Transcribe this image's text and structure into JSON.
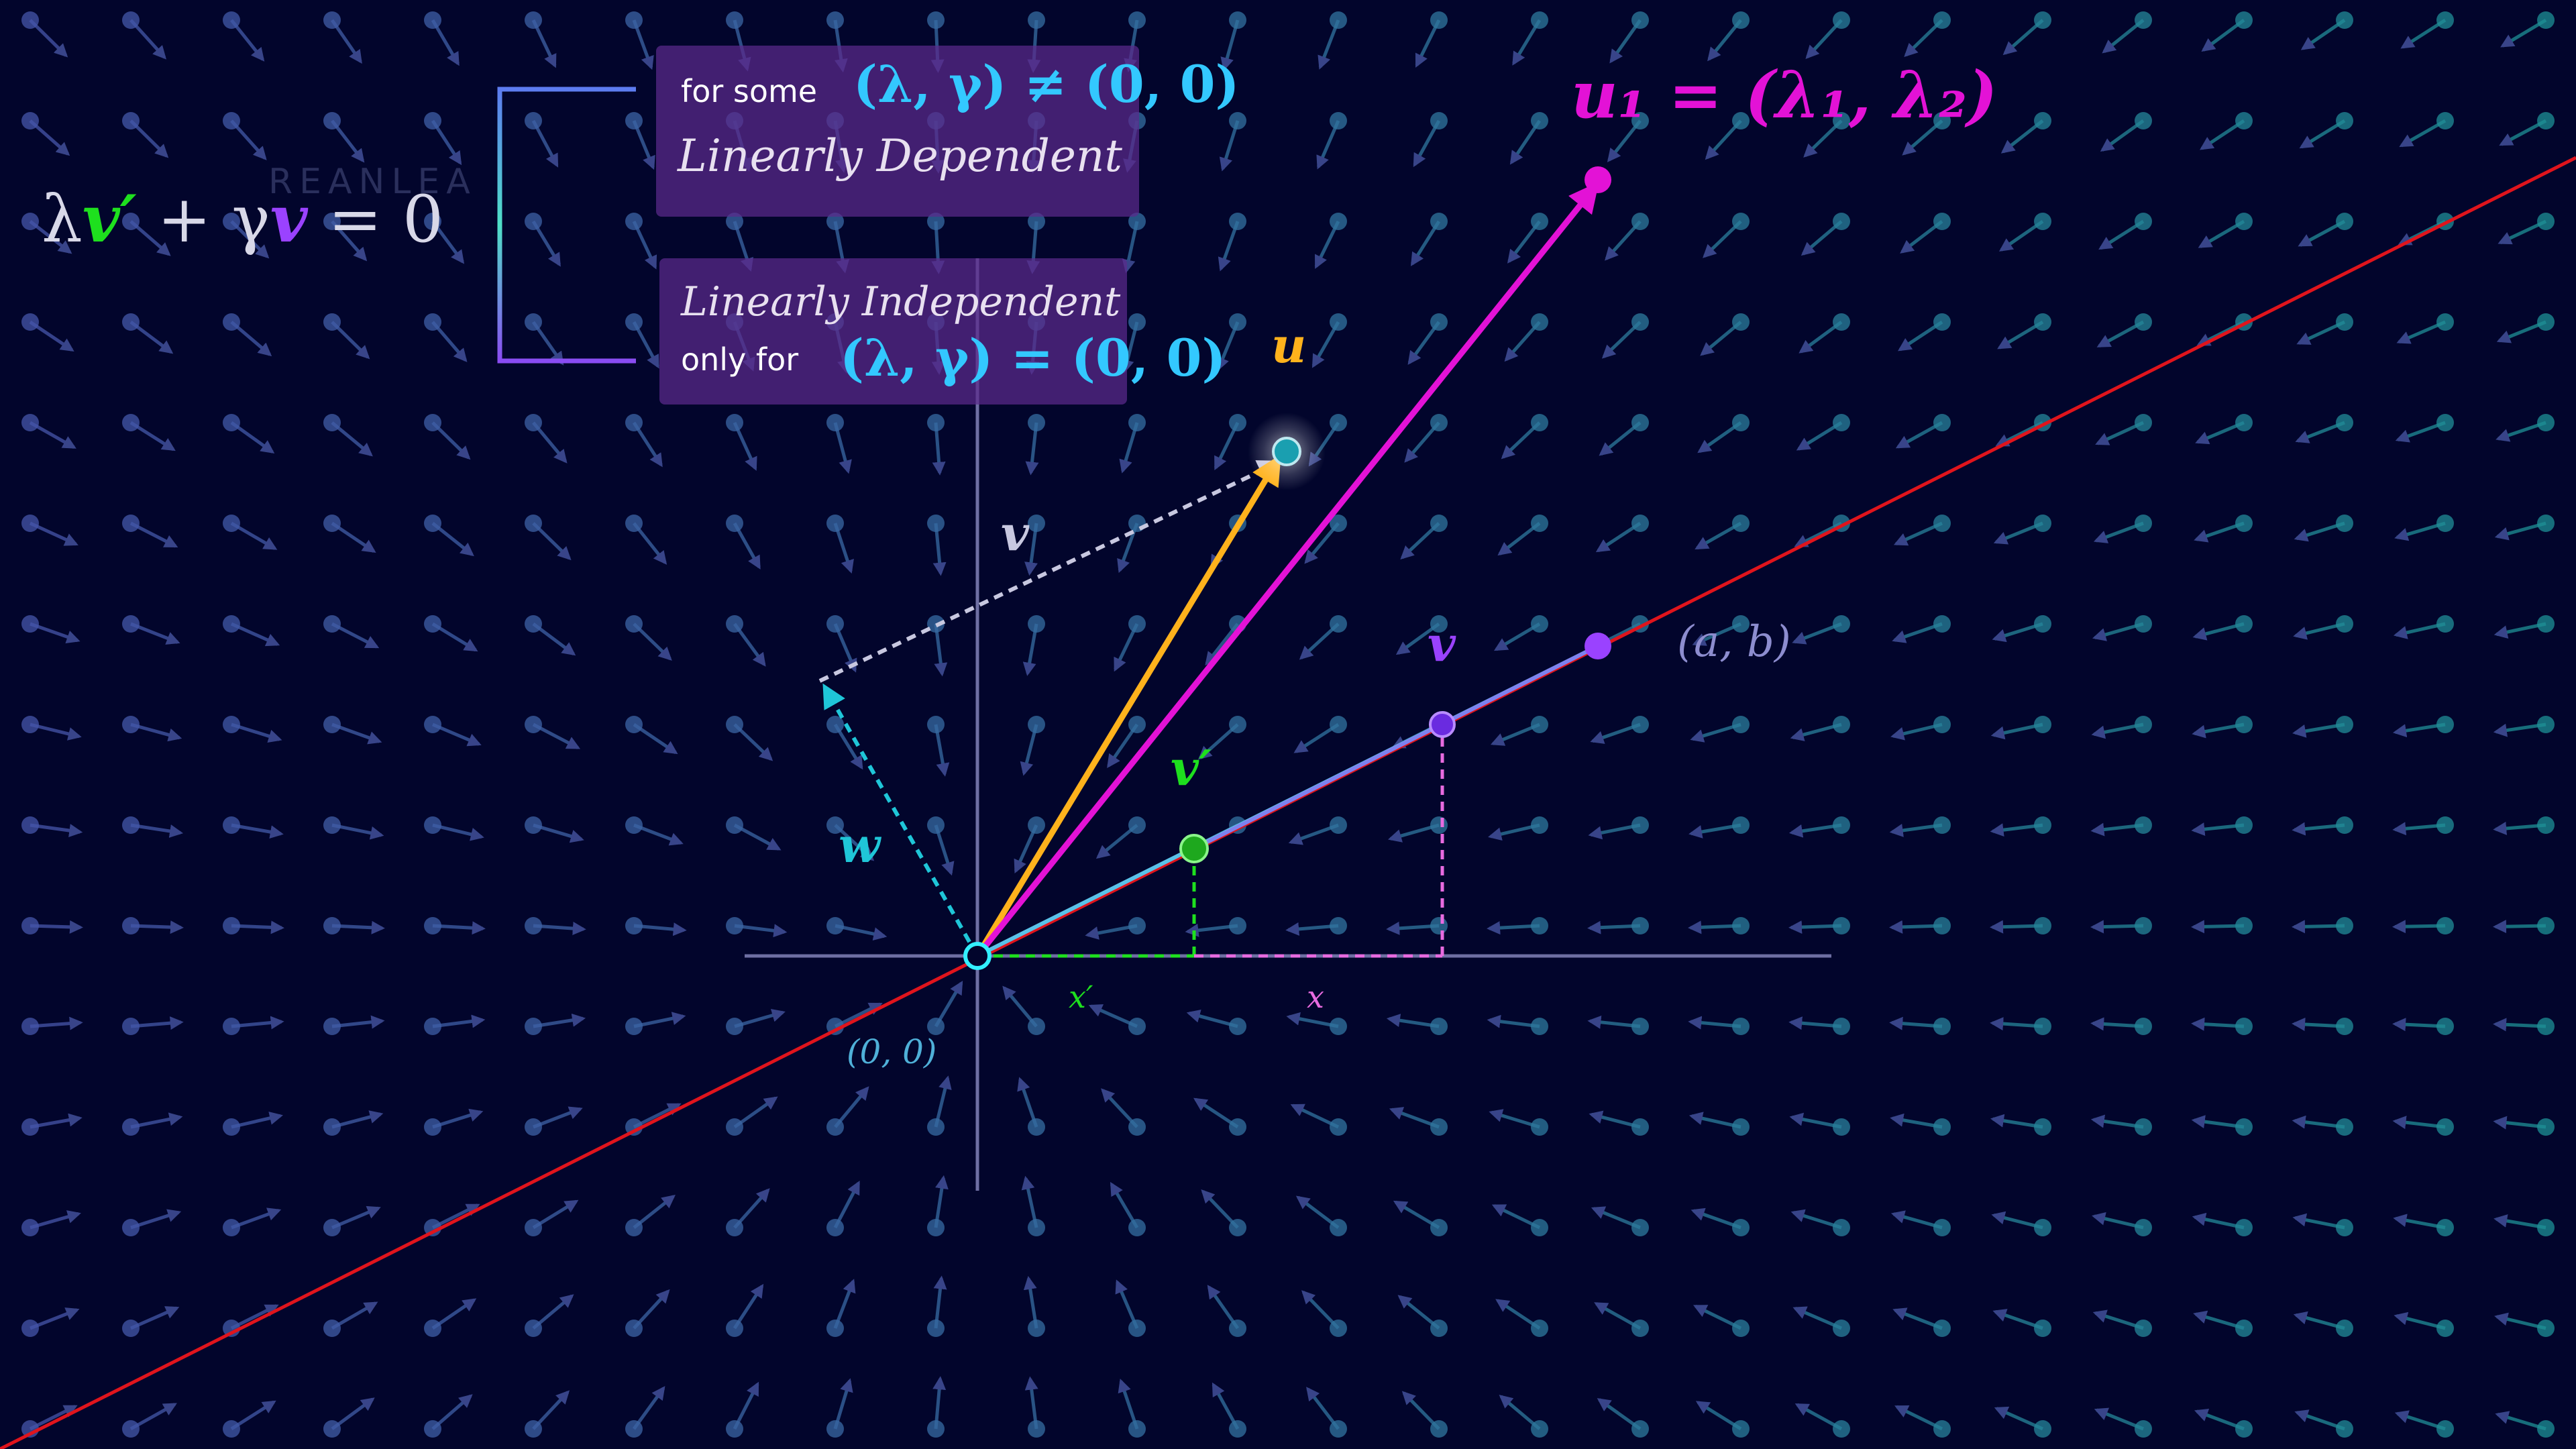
{
  "equation": {
    "lambda": "λ",
    "v_prime": "v′",
    "plus_gamma": " + γ",
    "v": "v",
    "equals_zero": " = 0"
  },
  "dependent_box": {
    "condition_prefix": "for some",
    "condition": "(λ, γ) ≠ (0, 0)",
    "title": "Linearly Dependent"
  },
  "independent_box": {
    "title": "Linearly Independent",
    "condition_prefix": "only for",
    "condition": "(λ, γ) = (0, 0)"
  },
  "labels": {
    "u1_equation": "u₁ = (λ₁, λ₂)",
    "u": "u",
    "v_dashed": "v",
    "v_point": "v",
    "v_prime": "v′",
    "w": "w",
    "ab": "(a, b)",
    "origin": "(0, 0)",
    "x_prime": "x′",
    "x": "x"
  },
  "watermark": "REANLEA",
  "colors": {
    "background": "#02052c",
    "u": "#ffb21c",
    "u1": "#e312d6",
    "v": "#9a42ff",
    "v_prime": "#1ee01e",
    "w": "#1fc6d8",
    "red_line": "#e0141c",
    "axis": "#6e6fa3",
    "field": "#4a5aa8"
  }
}
